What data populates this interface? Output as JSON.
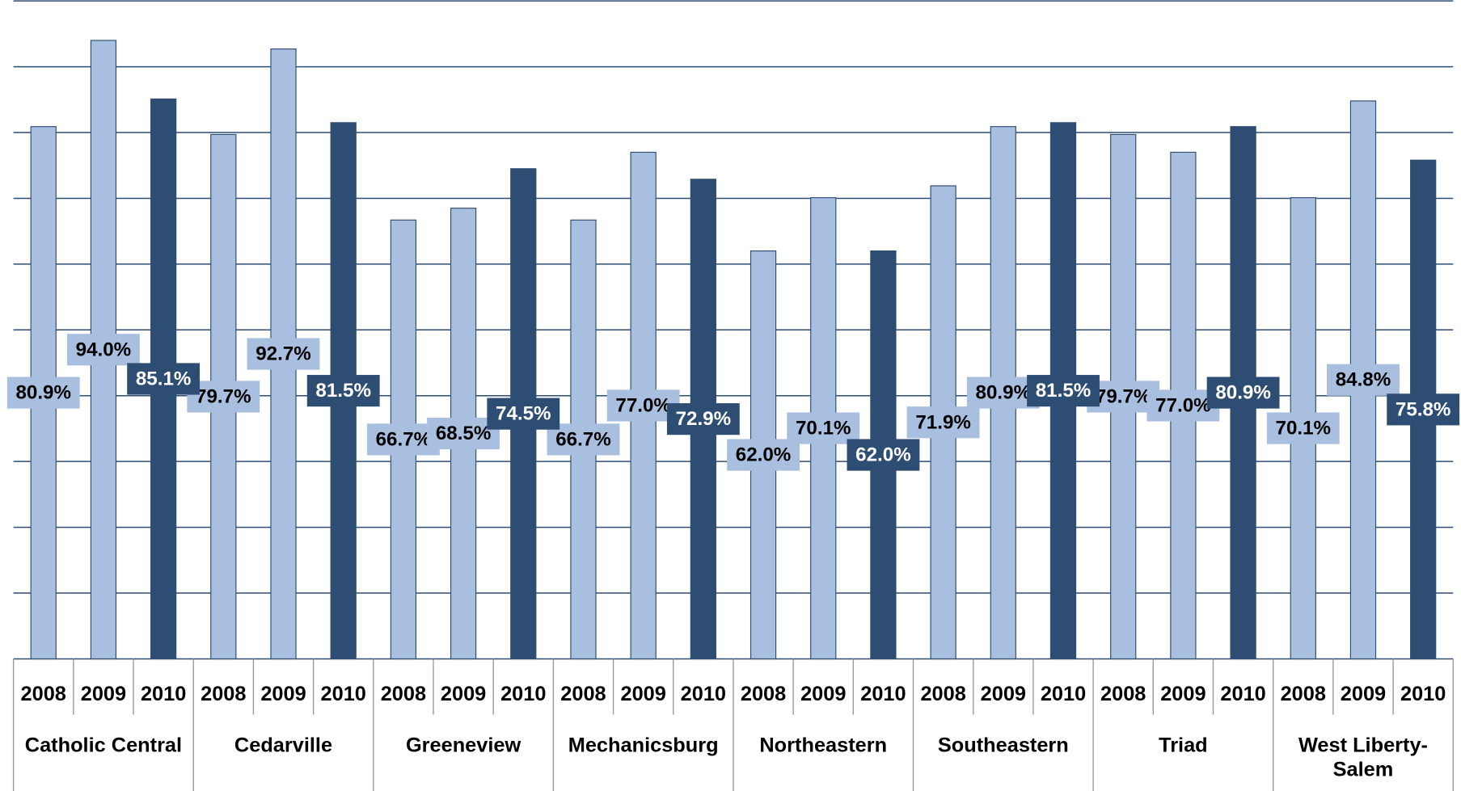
{
  "chart_data": {
    "type": "bar",
    "categories": [
      "Catholic Central",
      "Cedarville",
      "Greeneview",
      "Mechanicsburg",
      "Northeastern",
      "Southeastern",
      "Triad",
      "West Liberty-Salem"
    ],
    "series": [
      {
        "name": "2008",
        "color": "#a8bfdf",
        "values": [
          80.9,
          79.7,
          66.7,
          66.7,
          62.0,
          71.9,
          79.7,
          70.1
        ],
        "value_labels": [
          "80.9%",
          "79.7%",
          "66.7%",
          "66.7%",
          "62.0%",
          "71.9%",
          "79.7%",
          "70.1%"
        ]
      },
      {
        "name": "2009",
        "color": "#a8bfdf",
        "values": [
          94.0,
          92.7,
          68.5,
          77.0,
          70.1,
          80.9,
          77.0,
          84.8
        ],
        "value_labels": [
          "94.0%",
          "92.7%",
          "68.5%",
          "77.0%",
          "70.1%",
          "80.9%",
          "77.0%",
          "84.8%"
        ]
      },
      {
        "name": "2010",
        "color": "#2e4d73",
        "values": [
          85.1,
          81.5,
          74.5,
          72.9,
          62.0,
          81.5,
          80.9,
          75.8
        ],
        "value_labels": [
          "85.1%",
          "81.5%",
          "74.5%",
          "72.9%",
          "62.0%",
          "81.5%",
          "80.9%",
          "75.8%"
        ]
      }
    ],
    "ylim": [
      0,
      100
    ],
    "yticks": [
      0,
      10,
      20,
      30,
      40,
      50,
      60,
      70,
      80,
      90,
      100
    ],
    "grid": true
  }
}
